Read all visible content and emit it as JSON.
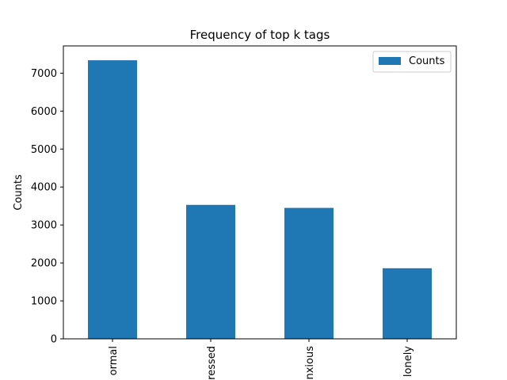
{
  "chart_data": {
    "type": "bar",
    "title": "Frequency of top k tags",
    "xlabel": "",
    "ylabel": "Counts",
    "categories": [
      "ormal",
      "ressed",
      "nxious",
      "lonely"
    ],
    "series": [
      {
        "name": "Counts",
        "values": [
          7340,
          3530,
          3450,
          1860
        ]
      }
    ],
    "ylim": [
      0,
      7718
    ],
    "yticks": [
      0,
      1000,
      2000,
      3000,
      4000,
      5000,
      6000,
      7000
    ],
    "legend": "top-right",
    "grid": false,
    "colors": {
      "bar": "#1f77b4"
    }
  }
}
